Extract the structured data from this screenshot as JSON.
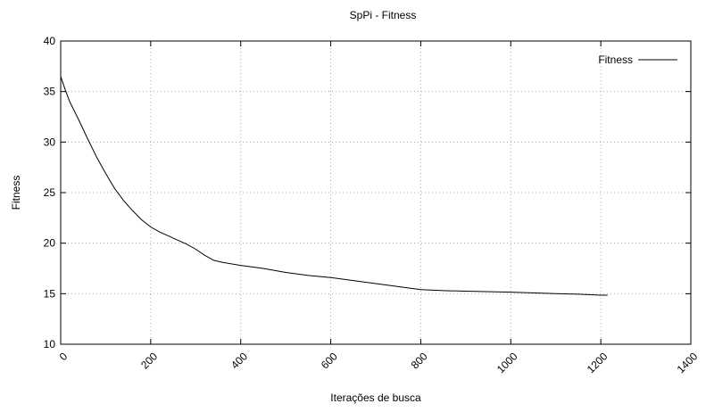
{
  "chart_data": {
    "type": "line",
    "title": "SpPi - Fitness",
    "xlabel": "Iterações de busca",
    "ylabel": "Fitness",
    "xlim": [
      0,
      1400
    ],
    "ylim": [
      10,
      40
    ],
    "xticks": [
      "0",
      "200",
      "400",
      "600",
      "800",
      "1000",
      "1200",
      "1400"
    ],
    "yticks": [
      "10",
      "15",
      "20",
      "25",
      "30",
      "35",
      "40"
    ],
    "grid": true,
    "legend_position": "top-right",
    "series": [
      {
        "name": "Fitness",
        "color": "#000000",
        "x": [
          0,
          10,
          20,
          40,
          60,
          80,
          100,
          120,
          140,
          160,
          180,
          200,
          220,
          240,
          260,
          280,
          300,
          320,
          340,
          360,
          400,
          450,
          500,
          550,
          600,
          650,
          700,
          750,
          800,
          850,
          900,
          1000,
          1100,
          1150,
          1200,
          1215
        ],
        "y": [
          36.5,
          35.2,
          34.0,
          32.2,
          30.3,
          28.5,
          26.9,
          25.4,
          24.2,
          23.2,
          22.3,
          21.6,
          21.1,
          20.7,
          20.3,
          19.9,
          19.4,
          18.8,
          18.3,
          18.1,
          17.8,
          17.5,
          17.1,
          16.8,
          16.6,
          16.3,
          16.0,
          15.7,
          15.4,
          15.3,
          15.25,
          15.15,
          15.0,
          14.95,
          14.85,
          14.85
        ]
      }
    ]
  }
}
